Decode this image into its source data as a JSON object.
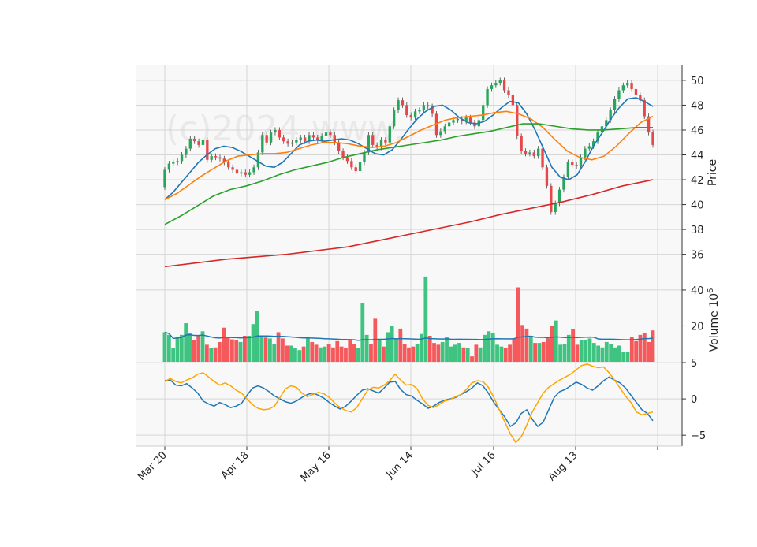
{
  "chart_data": {
    "type": "candlestick",
    "watermark": "(c)2024 www.",
    "xaxis": {
      "tick_labels": [
        "Mar 20",
        "Apr 18",
        "May 16",
        "Jun 14",
        "Jul 16",
        "Aug 13"
      ]
    },
    "price_panel": {
      "ylabel": "Price",
      "ylim": [
        34.2,
        51.2
      ],
      "yticks": [
        36,
        38,
        40,
        42,
        44,
        46,
        48,
        50
      ],
      "up_color": "#26a65b",
      "down_color": "#e8474a",
      "close": [
        42.8,
        43.3,
        43.4,
        43.5,
        44.0,
        44.5,
        45.3,
        45.1,
        44.8,
        45.2,
        43.6,
        43.9,
        43.8,
        43.7,
        43.4,
        43.0,
        42.8,
        42.5,
        42.6,
        42.4,
        42.6,
        43.0,
        44.2,
        45.6,
        45.0,
        45.8,
        46.0,
        45.4,
        45.1,
        44.9,
        45.0,
        45.2,
        45.4,
        45.1,
        45.6,
        45.4,
        45.2,
        45.5,
        45.8,
        45.6,
        45.0,
        44.3,
        43.8,
        43.5,
        43.0,
        42.7,
        43.4,
        44.2,
        45.6,
        44.8,
        44.6,
        45.2,
        45.0,
        46.3,
        47.6,
        48.4,
        48.0,
        47.2,
        47.0,
        47.5,
        47.6,
        48.0,
        47.9,
        47.3,
        45.6,
        45.9,
        46.3,
        46.6,
        46.8,
        46.9,
        46.7,
        47.0,
        46.6,
        46.3,
        46.8,
        48.0,
        49.3,
        49.6,
        49.8,
        50.0,
        49.2,
        48.8,
        48.0,
        45.5,
        44.3,
        44.1,
        44.2,
        43.9,
        44.5,
        43.0,
        41.5,
        39.4,
        40.1,
        41.2,
        42.2,
        43.4,
        43.2,
        43.1,
        43.8,
        44.5,
        44.7,
        45.1,
        45.8,
        46.3,
        46.8,
        47.6,
        48.5,
        49.2,
        49.6,
        49.8,
        49.3,
        48.8,
        48.4,
        47.1,
        45.8,
        44.8
      ]
    },
    "volume_panel": {
      "ylabel": "Volume 10^6",
      "ylim": [
        0,
        47
      ],
      "yticks": [
        20,
        40
      ],
      "volumes": [
        16.5,
        15,
        7.5,
        14,
        15,
        21.5,
        16,
        12,
        14.5,
        17,
        9.5,
        7.5,
        8,
        11,
        19,
        13.5,
        12.5,
        12,
        11,
        14.5,
        14.5,
        21,
        28.5,
        14,
        13.5,
        13,
        10,
        16.5,
        13,
        9,
        9,
        7.5,
        6.5,
        8.5,
        13,
        11,
        9.5,
        8,
        8.5,
        10,
        8,
        11.5,
        8.5,
        7.5,
        12.5,
        10,
        7.5,
        32.5,
        15,
        10,
        24,
        12,
        8.5,
        16.5,
        20,
        13,
        18.5,
        10,
        8,
        8.5,
        10,
        15.5,
        47.5,
        14.5,
        10.5,
        9.5,
        11,
        14,
        8.5,
        9.5,
        10.5,
        8,
        7.5,
        3,
        9.5,
        8,
        15,
        17,
        16,
        9.5,
        8.5,
        7.5,
        9.5,
        13,
        41.5,
        20.5,
        18.5,
        14.5,
        10.5,
        10.5,
        11,
        13,
        20,
        23,
        9.5,
        10,
        15,
        18,
        9.5,
        12,
        12,
        13,
        10.5,
        9,
        8,
        11,
        10,
        8,
        9,
        5.5,
        5.5,
        14,
        11.5,
        15,
        16,
        11,
        17.5
      ],
      "avg_color": "#1f77b4"
    },
    "oscillator_panel": {
      "ylim": [
        -6.5,
        5.0
      ],
      "yticks": [
        -5,
        0,
        5
      ],
      "series": [
        {
          "color": "#1f77b4",
          "values": [
            2.5,
            2.6,
            1.9,
            1.8,
            2.1,
            1.5,
            0.8,
            -0.3,
            -0.7,
            -1.0,
            -0.5,
            -0.8,
            -1.2,
            -1.0,
            -0.6,
            0.5,
            1.5,
            1.8,
            1.5,
            1.0,
            0.4,
            0.0,
            -0.4,
            -0.6,
            -0.3,
            0.2,
            0.6,
            0.8,
            0.5,
            0.1,
            -0.5,
            -1.0,
            -1.4,
            -1.0,
            -0.3,
            0.5,
            1.2,
            1.4,
            1.1,
            0.8,
            1.5,
            2.3,
            2.4,
            1.3,
            0.6,
            0.4,
            -0.2,
            -0.7,
            -1.3,
            -1.0,
            -0.5,
            -0.2,
            0.0,
            0.2,
            0.6,
            1.0,
            1.5,
            2.2,
            1.8,
            0.8,
            -0.5,
            -1.5,
            -2.5,
            -3.8,
            -3.3,
            -2.0,
            -1.5,
            -2.8,
            -3.8,
            -3.2,
            -1.5,
            0.2,
            1.0,
            1.3,
            1.8,
            2.3,
            2.0,
            1.5,
            1.2,
            1.8,
            2.5,
            3.0,
            2.6,
            2.2,
            1.5,
            0.5,
            -0.5,
            -1.5,
            -2.0,
            -3.0
          ]
        },
        {
          "color": "#ffa500",
          "values": [
            2.4,
            2.8,
            2.4,
            2.2,
            2.6,
            2.9,
            3.4,
            3.6,
            3.0,
            2.4,
            1.9,
            2.2,
            1.8,
            1.2,
            0.8,
            0.0,
            -0.8,
            -1.3,
            -1.5,
            -1.4,
            -1.0,
            0.2,
            1.4,
            1.8,
            1.6,
            0.8,
            0.3,
            0.6,
            0.9,
            0.7,
            0.2,
            -0.6,
            -1.2,
            -1.6,
            -1.8,
            -1.2,
            0.0,
            1.2,
            1.6,
            1.5,
            1.9,
            2.5,
            3.4,
            2.6,
            1.9,
            2.0,
            1.4,
            0.0,
            -0.9,
            -1.2,
            -0.8,
            -0.3,
            -0.1,
            0.3,
            0.6,
            1.3,
            2.2,
            2.5,
            2.4,
            1.6,
            0.2,
            -1.5,
            -3.2,
            -4.8,
            -6.0,
            -5.2,
            -3.6,
            -1.8,
            -0.5,
            0.8,
            1.6,
            2.1,
            2.6,
            3.0,
            3.4,
            4.0,
            4.6,
            4.8,
            4.5,
            4.3,
            4.4,
            3.6,
            2.6,
            1.5,
            0.4,
            -0.5,
            -1.8,
            -2.2,
            -2.0,
            -1.8
          ]
        }
      ]
    },
    "overlays": [
      {
        "name": "",
        "color": "#1f77b4",
        "values": [
          40.4,
          41.0,
          41.8,
          42.6,
          43.4,
          44.0,
          44.5,
          44.7,
          44.6,
          44.3,
          43.9,
          43.5,
          43.1,
          43.0,
          43.4,
          44.1,
          44.8,
          45.1,
          45.2,
          45.1,
          45.2,
          45.3,
          45.2,
          44.9,
          44.5,
          44.1,
          44.0,
          44.4,
          45.2,
          46.1,
          46.9,
          47.5,
          47.9,
          48.0,
          47.6,
          47.0,
          46.6,
          46.5,
          46.7,
          47.2,
          47.8,
          48.3,
          48.2,
          47.3,
          46.0,
          44.5,
          43.0,
          42.2,
          42.0,
          42.4,
          43.5,
          44.8,
          45.8,
          46.9,
          47.8,
          48.5,
          48.6,
          48.3,
          47.9
        ]
      },
      {
        "name": "",
        "color": "#ff7f0e",
        "values": [
          40.4,
          40.9,
          41.6,
          42.3,
          42.9,
          43.5,
          43.9,
          44.0,
          44.1,
          44.1,
          44.2,
          44.5,
          44.8,
          45.0,
          45.0,
          44.9,
          44.7,
          44.6,
          44.7,
          45.0,
          45.5,
          46.0,
          46.4,
          46.8,
          47.0,
          47.1,
          47.2,
          47.4,
          47.5,
          47.3,
          46.9,
          46.2,
          45.2,
          44.3,
          43.8,
          43.6,
          43.9,
          44.7,
          45.7,
          46.6,
          47.1
        ]
      },
      {
        "name": "",
        "color": "#2ca02c",
        "values": [
          38.4,
          39.1,
          39.9,
          40.7,
          41.2,
          41.5,
          41.9,
          42.4,
          42.8,
          43.1,
          43.4,
          43.8,
          44.1,
          44.4,
          44.6,
          44.8,
          45.0,
          45.2,
          45.5,
          45.7,
          45.9,
          46.2,
          46.5,
          46.5,
          46.3,
          46.1,
          46.0,
          46.0,
          46.1,
          46.2,
          46.2
        ]
      },
      {
        "name": "",
        "color": "#d62728",
        "values": [
          35.0,
          35.3,
          35.6,
          35.8,
          36.0,
          36.3,
          36.6,
          37.1,
          37.6,
          38.1,
          38.6,
          39.2,
          39.7,
          40.2,
          40.8,
          41.5,
          42.0
        ]
      }
    ]
  }
}
